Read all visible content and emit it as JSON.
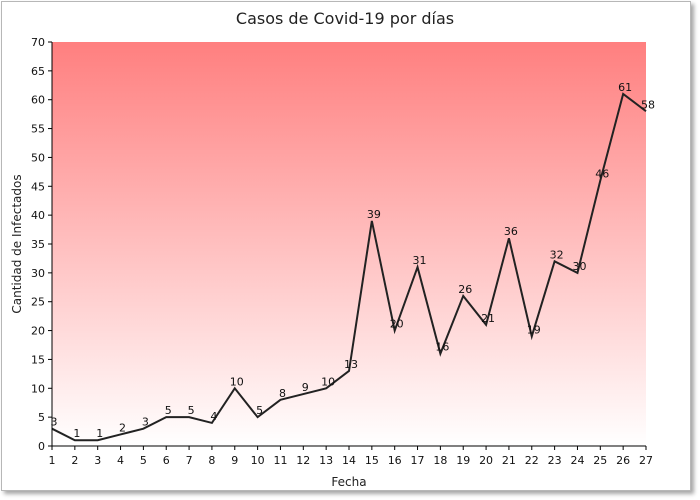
{
  "chart_data": {
    "type": "line",
    "title": "Casos de Covid-19 por días",
    "xlabel": "Fecha",
    "ylabel": "Cantidad de Infectados",
    "x": [
      "1",
      "2",
      "3",
      "4",
      "5",
      "6",
      "7",
      "8",
      "9",
      "10",
      "11",
      "12",
      "13",
      "14",
      "15",
      "16",
      "17",
      "18",
      "19",
      "20",
      "21",
      "22",
      "23",
      "24",
      "25",
      "26",
      "27"
    ],
    "series": [
      {
        "values": [
          3,
          1,
          1,
          2,
          3,
          5,
          5,
          4,
          10,
          5,
          8,
          9,
          10,
          13,
          39,
          20,
          31,
          16,
          26,
          21,
          36,
          19,
          32,
          30,
          46,
          61,
          58
        ]
      }
    ],
    "ylim": [
      0,
      70
    ],
    "yticks": [
      0,
      5,
      10,
      15,
      20,
      25,
      30,
      35,
      40,
      45,
      50,
      55,
      60,
      65,
      70
    ],
    "grid": false,
    "legend": "none",
    "data_labels": true,
    "colors": {
      "line": "#222222",
      "background_top": "#ff7f7f",
      "background_bottom": "#ffffff"
    }
  }
}
